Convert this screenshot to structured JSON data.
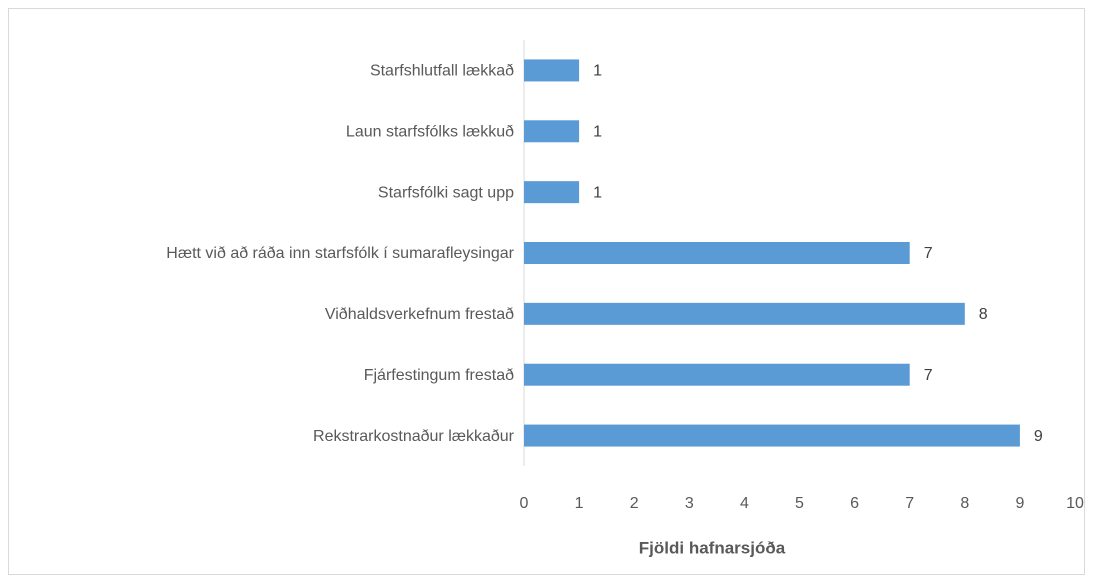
{
  "chart_data": {
    "type": "bar",
    "orientation": "horizontal",
    "x_label": "Fjöldi hafnarsjóða",
    "categories": [
      "Starfshlutfall lækkað",
      "Laun starfsfólks lækkuð",
      "Starfsfólki sagt upp",
      "Hætt við að ráða inn starfsfólk í sumarafleysingar",
      "Viðhaldsverkefnum frestað",
      "Fjárfestingum frestað",
      "Rekstrarkostnaður lækkaður"
    ],
    "values": [
      1,
      1,
      1,
      7,
      8,
      7,
      9
    ],
    "color": "#5b9bd5",
    "xlim": [
      0,
      10
    ],
    "xticks": [
      0,
      1,
      2,
      3,
      4,
      5,
      6,
      7,
      8,
      9,
      10
    ],
    "grid": false
  }
}
